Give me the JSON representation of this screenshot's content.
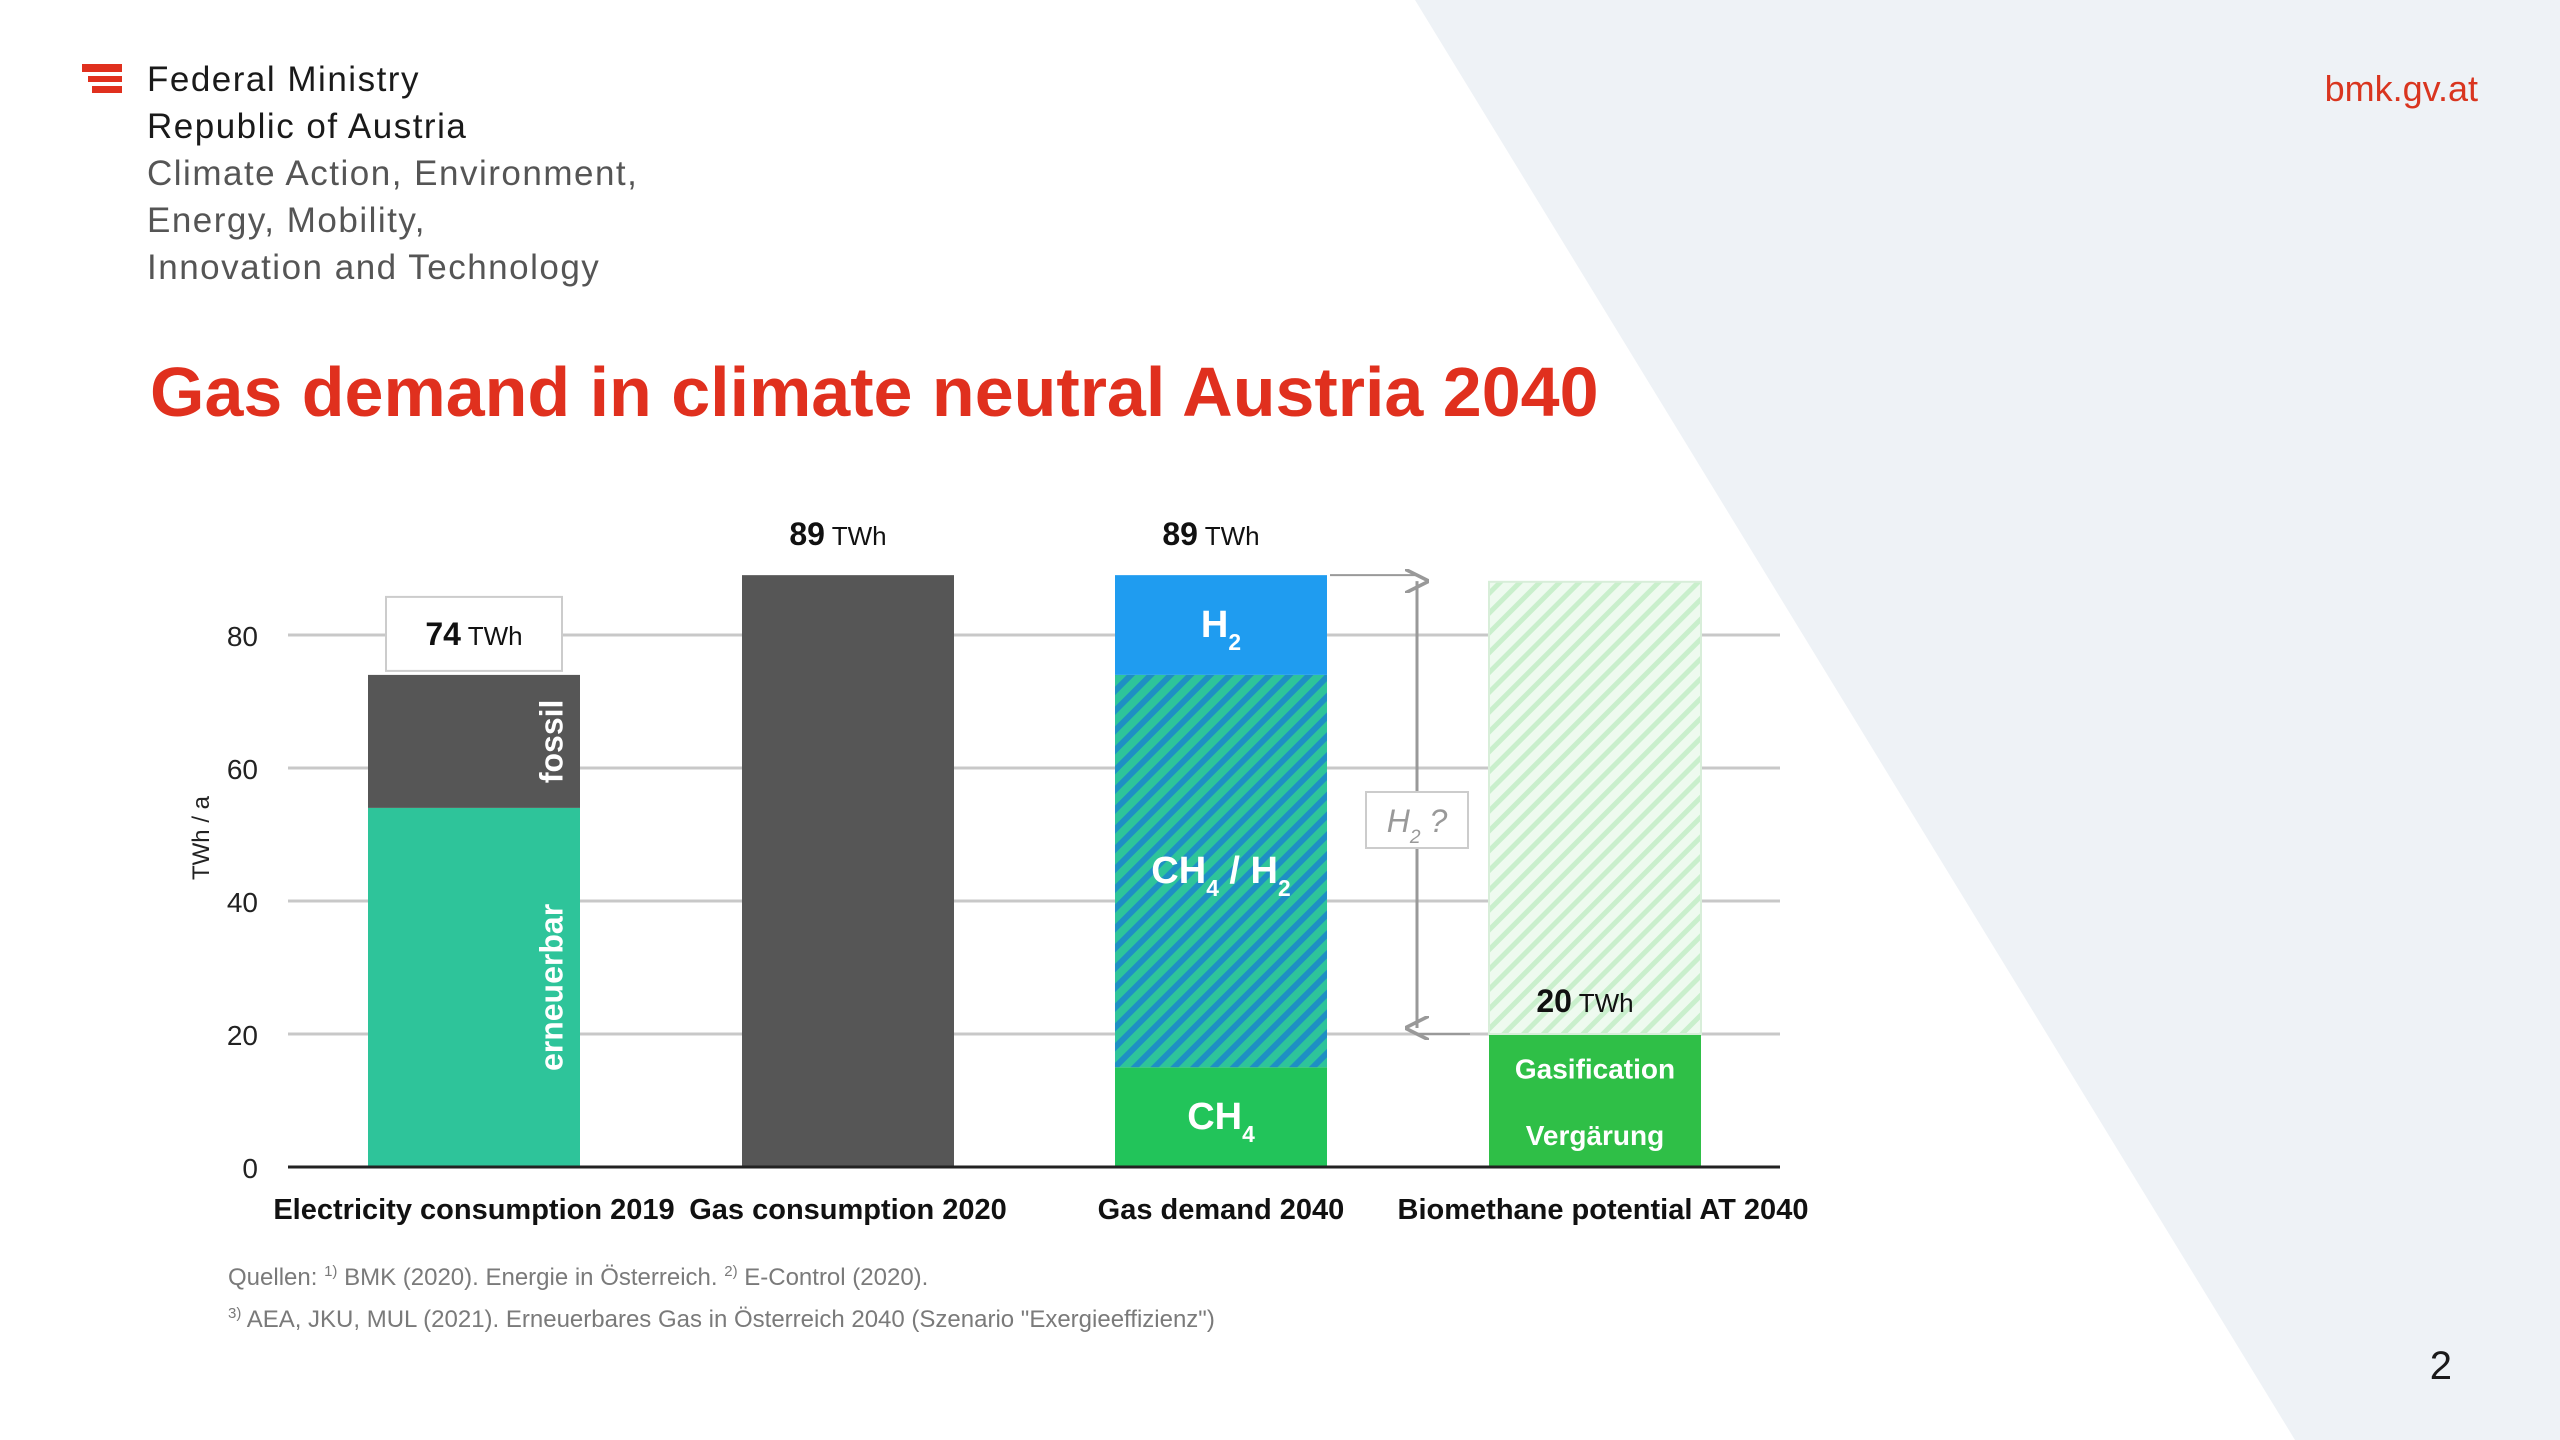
{
  "header": {
    "ministry_lines": [
      "Federal Ministry",
      "Republic of Austria",
      "Climate Action, Environment,",
      "Energy, Mobility,",
      "Innovation and Technology"
    ],
    "site": "bmk.gv.at"
  },
  "slide": {
    "title": "Gas demand in climate neutral Austria 2040",
    "page_number": "2"
  },
  "sources": {
    "line1": {
      "prefix": "Quellen: ",
      "sup1": "1)",
      "text1": " BMK (2020). Energie in Österreich. ",
      "sup2": "2)",
      "text2": " E-Control (2020)."
    },
    "line2": {
      "sup": "3)",
      "text": " AEA, JKU, MUL (2021). Erneuerbares Gas in Österreich 2040 (Szenario \"Exergieeffizienz\")"
    }
  },
  "colors": {
    "title": "#e0301e",
    "renewable": "#2ec49a",
    "fossil_dark": "#565656",
    "h2_blue": "#1f9cf0",
    "ch4_h2_hatch_base": "#2aa7ba",
    "ch4_green": "#22c45a",
    "biomethane_green": "#2fbf47",
    "hatch_light": "#c9efcc"
  },
  "chart_data": {
    "type": "bar",
    "stacked": true,
    "ylabel": "TWh / a",
    "ylim": [
      0,
      80
    ],
    "yticks": [
      0,
      20,
      40,
      60,
      80
    ],
    "grid": true,
    "categories": [
      "Electricity consumption 2019",
      "Gas consumption 2020",
      "Gas demand 2040",
      "Biomethane potential AT 2040"
    ],
    "bars": [
      {
        "category": "Electricity consumption 2019",
        "total_label": {
          "value": "74",
          "unit": "TWh"
        },
        "total_boxed": true,
        "segments": [
          {
            "label": "erneuerbar",
            "from": 0,
            "to": 54,
            "style": "renewable",
            "vertical": true
          },
          {
            "label": "fossil",
            "from": 54,
            "to": 74,
            "style": "fossil",
            "vertical": true
          }
        ]
      },
      {
        "category": "Gas consumption 2020",
        "total_label": {
          "value": "89",
          "unit": "TWh"
        },
        "total_boxed": false,
        "segments": [
          {
            "label": "",
            "from": 0,
            "to": 89,
            "style": "fossil",
            "vertical": false
          }
        ]
      },
      {
        "category": "Gas demand 2040",
        "total_label": {
          "value": "89",
          "unit": "TWh"
        },
        "total_boxed": false,
        "segments": [
          {
            "label": "CH",
            "sub": "4",
            "from": 0,
            "to": 15,
            "style": "ch4",
            "vertical": false
          },
          {
            "label": "CH",
            "sub": "4",
            "label2": " / H",
            "sub2": "2",
            "from": 15,
            "to": 74,
            "style": "ch4h2",
            "vertical": false
          },
          {
            "label": "H",
            "sub": "2",
            "from": 74,
            "to": 89,
            "style": "h2",
            "vertical": false
          }
        ]
      },
      {
        "category": "Biomethane potential AT 2040",
        "total_label": {
          "value": "20",
          "unit": "TWh"
        },
        "total_boxed": false,
        "total_at": 20,
        "segments": [
          {
            "label": "Vergärung",
            "from": 0,
            "to": 10,
            "style": "bio",
            "vertical": false
          },
          {
            "label": "Gasification",
            "from": 10,
            "to": 20,
            "style": "bio",
            "vertical": false
          },
          {
            "label": "",
            "from": 20,
            "to": 88,
            "style": "bio_hatch",
            "vertical": false
          }
        ]
      }
    ],
    "annotation": {
      "label": "H",
      "sub": "2",
      "suffix": " ?",
      "from": 20,
      "to": 89
    }
  }
}
